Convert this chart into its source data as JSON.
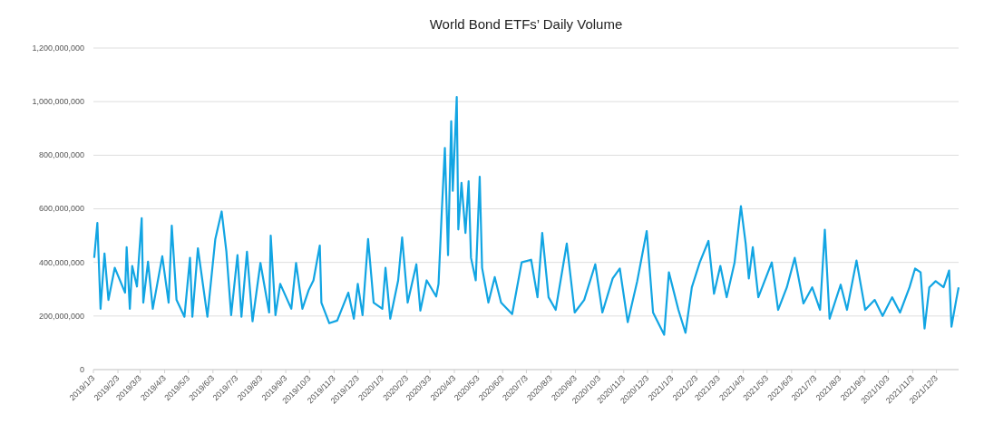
{
  "chart_data": {
    "type": "line",
    "title": "World Bond ETFs’ Daily Volume",
    "x": [
      "2019-01-04",
      "2019-01-08",
      "2019-01-12",
      "2019-01-17",
      "2019-01-22",
      "2019-01-30",
      "2019-02-12",
      "2019-02-14",
      "2019-02-18",
      "2019-02-21",
      "2019-02-27",
      "2019-03-05",
      "2019-03-07",
      "2019-03-13",
      "2019-03-19",
      "2019-03-31",
      "2019-04-08",
      "2019-04-12",
      "2019-04-18",
      "2019-04-28",
      "2019-05-05",
      "2019-05-08",
      "2019-05-15",
      "2019-05-27",
      "2019-06-06",
      "2019-06-14",
      "2019-06-20",
      "2019-06-26",
      "2019-07-04",
      "2019-07-09",
      "2019-07-16",
      "2019-07-23",
      "2019-08-02",
      "2019-08-13",
      "2019-08-15",
      "2019-08-21",
      "2019-08-27",
      "2019-09-10",
      "2019-09-16",
      "2019-09-24",
      "2019-10-02",
      "2019-10-08",
      "2019-10-16",
      "2019-10-18",
      "2019-10-28",
      "2019-11-07",
      "2019-11-21",
      "2019-11-28",
      "2019-12-03",
      "2019-12-09",
      "2019-12-16",
      "2019-12-23",
      "2020-01-03",
      "2020-01-07",
      "2020-01-13",
      "2020-01-23",
      "2020-01-28",
      "2020-02-04",
      "2020-02-15",
      "2020-02-20",
      "2020-02-28",
      "2020-03-11",
      "2020-03-14",
      "2020-03-18",
      "2020-03-22",
      "2020-03-26",
      "2020-03-30",
      "2020-04-01",
      "2020-04-06",
      "2020-04-08",
      "2020-04-12",
      "2020-04-17",
      "2020-04-21",
      "2020-04-24",
      "2020-04-30",
      "2020-05-05",
      "2020-05-08",
      "2020-05-16",
      "2020-05-24",
      "2020-06-01",
      "2020-06-15",
      "2020-06-27",
      "2020-07-09",
      "2020-07-17",
      "2020-07-23",
      "2020-07-31",
      "2020-08-09",
      "2020-08-23",
      "2020-09-02",
      "2020-09-14",
      "2020-09-28",
      "2020-10-07",
      "2020-10-20",
      "2020-10-29",
      "2020-11-08",
      "2020-11-20",
      "2020-12-02",
      "2020-12-10",
      "2020-12-24",
      "2020-12-30",
      "2021-01-11",
      "2021-01-20",
      "2021-01-28",
      "2021-02-07",
      "2021-02-18",
      "2021-02-25",
      "2021-03-05",
      "2021-03-13",
      "2021-03-23",
      "2021-03-31",
      "2021-04-06",
      "2021-04-10",
      "2021-04-15",
      "2021-04-22",
      "2021-05-09",
      "2021-05-17",
      "2021-05-28",
      "2021-06-07",
      "2021-06-18",
      "2021-06-29",
      "2021-07-09",
      "2021-07-15",
      "2021-07-21",
      "2021-08-04",
      "2021-08-12",
      "2021-08-24",
      "2021-09-04",
      "2021-09-16",
      "2021-09-26",
      "2021-10-08",
      "2021-10-18",
      "2021-10-30",
      "2021-11-06",
      "2021-11-13",
      "2021-11-18",
      "2021-11-24",
      "2021-12-02",
      "2021-12-12",
      "2021-12-19",
      "2021-12-22",
      "2021-12-28",
      "2021-12-31"
    ],
    "series": [
      {
        "color": "#12a5e3",
        "values": [
          417000000,
          547000000,
          227000000,
          433000000,
          260000000,
          380000000,
          287000000,
          457000000,
          227000000,
          387000000,
          310000000,
          565000000,
          250000000,
          403000000,
          227000000,
          423000000,
          250000000,
          537000000,
          260000000,
          197000000,
          417000000,
          197000000,
          453000000,
          197000000,
          487000000,
          590000000,
          440000000,
          203000000,
          427000000,
          197000000,
          440000000,
          180000000,
          398000000,
          213000000,
          500000000,
          203000000,
          320000000,
          227000000,
          398000000,
          227000000,
          297000000,
          333000000,
          463000000,
          250000000,
          173000000,
          183000000,
          287000000,
          190000000,
          320000000,
          203000000,
          487000000,
          250000000,
          227000000,
          380000000,
          190000000,
          333000000,
          493000000,
          250000000,
          393000000,
          220000000,
          333000000,
          273000000,
          320000000,
          583000000,
          827000000,
          427000000,
          927000000,
          667000000,
          1017000000,
          523000000,
          697000000,
          510000000,
          703000000,
          417000000,
          333000000,
          720000000,
          380000000,
          250000000,
          345000000,
          250000000,
          207000000,
          400000000,
          410000000,
          270000000,
          510000000,
          270000000,
          223000000,
          470000000,
          213000000,
          260000000,
          393000000,
          213000000,
          340000000,
          377000000,
          177000000,
          330000000,
          517000000,
          213000000,
          130000000,
          363000000,
          223000000,
          137000000,
          307000000,
          400000000,
          480000000,
          283000000,
          387000000,
          270000000,
          400000000,
          610000000,
          470000000,
          340000000,
          457000000,
          270000000,
          400000000,
          223000000,
          307000000,
          417000000,
          247000000,
          307000000,
          223000000,
          522000000,
          190000000,
          317000000,
          223000000,
          407000000,
          223000000,
          260000000,
          200000000,
          270000000,
          213000000,
          307000000,
          377000000,
          363000000,
          153000000,
          307000000,
          330000000,
          307000000,
          370000000,
          160000000,
          260000000,
          307000000
        ]
      }
    ],
    "xlim": [
      "2019-01-03",
      "2021-12-31"
    ],
    "xticks": [
      {
        "value": "2019-01-03",
        "label": "2019/1/3"
      },
      {
        "value": "2019-02-03",
        "label": "2019/2/3"
      },
      {
        "value": "2019-03-03",
        "label": "2019/3/3"
      },
      {
        "value": "2019-04-03",
        "label": "2019/4/3"
      },
      {
        "value": "2019-05-03",
        "label": "2019/5/3"
      },
      {
        "value": "2019-06-03",
        "label": "2019/6/3"
      },
      {
        "value": "2019-07-03",
        "label": "2019/7/3"
      },
      {
        "value": "2019-08-03",
        "label": "2019/8/3"
      },
      {
        "value": "2019-09-03",
        "label": "2019/9/3"
      },
      {
        "value": "2019-10-03",
        "label": "2019/10/3"
      },
      {
        "value": "2019-11-03",
        "label": "2019/11/3"
      },
      {
        "value": "2019-12-03",
        "label": "2019/12/3"
      },
      {
        "value": "2020-01-03",
        "label": "2020/1/3"
      },
      {
        "value": "2020-02-03",
        "label": "2020/2/3"
      },
      {
        "value": "2020-03-03",
        "label": "2020/3/3"
      },
      {
        "value": "2020-04-03",
        "label": "2020/4/3"
      },
      {
        "value": "2020-05-03",
        "label": "2020/5/3"
      },
      {
        "value": "2020-06-03",
        "label": "2020/6/3"
      },
      {
        "value": "2020-07-03",
        "label": "2020/7/3"
      },
      {
        "value": "2020-08-03",
        "label": "2020/8/3"
      },
      {
        "value": "2020-09-03",
        "label": "2020/9/3"
      },
      {
        "value": "2020-10-03",
        "label": "2020/10/3"
      },
      {
        "value": "2020-11-03",
        "label": "2020/11/3"
      },
      {
        "value": "2020-12-03",
        "label": "2020/12/3"
      },
      {
        "value": "2021-01-03",
        "label": "2021/1/3"
      },
      {
        "value": "2021-02-03",
        "label": "2021/2/3"
      },
      {
        "value": "2021-03-03",
        "label": "2021/3/3"
      },
      {
        "value": "2021-04-03",
        "label": "2021/4/3"
      },
      {
        "value": "2021-05-03",
        "label": "2021/5/3"
      },
      {
        "value": "2021-06-03",
        "label": "2021/6/3"
      },
      {
        "value": "2021-07-03",
        "label": "2021/7/3"
      },
      {
        "value": "2021-08-03",
        "label": "2021/8/3"
      },
      {
        "value": "2021-09-03",
        "label": "2021/9/3"
      },
      {
        "value": "2021-10-03",
        "label": "2021/10/3"
      },
      {
        "value": "2021-11-03",
        "label": "2021/11/3"
      },
      {
        "value": "2021-12-03",
        "label": "2021/12/3"
      }
    ],
    "ylim": [
      0,
      1200000000
    ],
    "yticks": [
      0,
      {
        "value": 200000000,
        "label": "200,000,000"
      },
      {
        "value": 400000000,
        "label": "400,000,000"
      },
      {
        "value": 600000000,
        "label": "600,000,000"
      },
      {
        "value": 800000000,
        "label": "800,000,000"
      },
      {
        "value": 1000000000,
        "label": "1,000,000,000"
      },
      {
        "value": 1200000000,
        "label": "1,200,000,000"
      }
    ],
    "grid": "y",
    "marker": "none",
    "line_style": "solid"
  }
}
